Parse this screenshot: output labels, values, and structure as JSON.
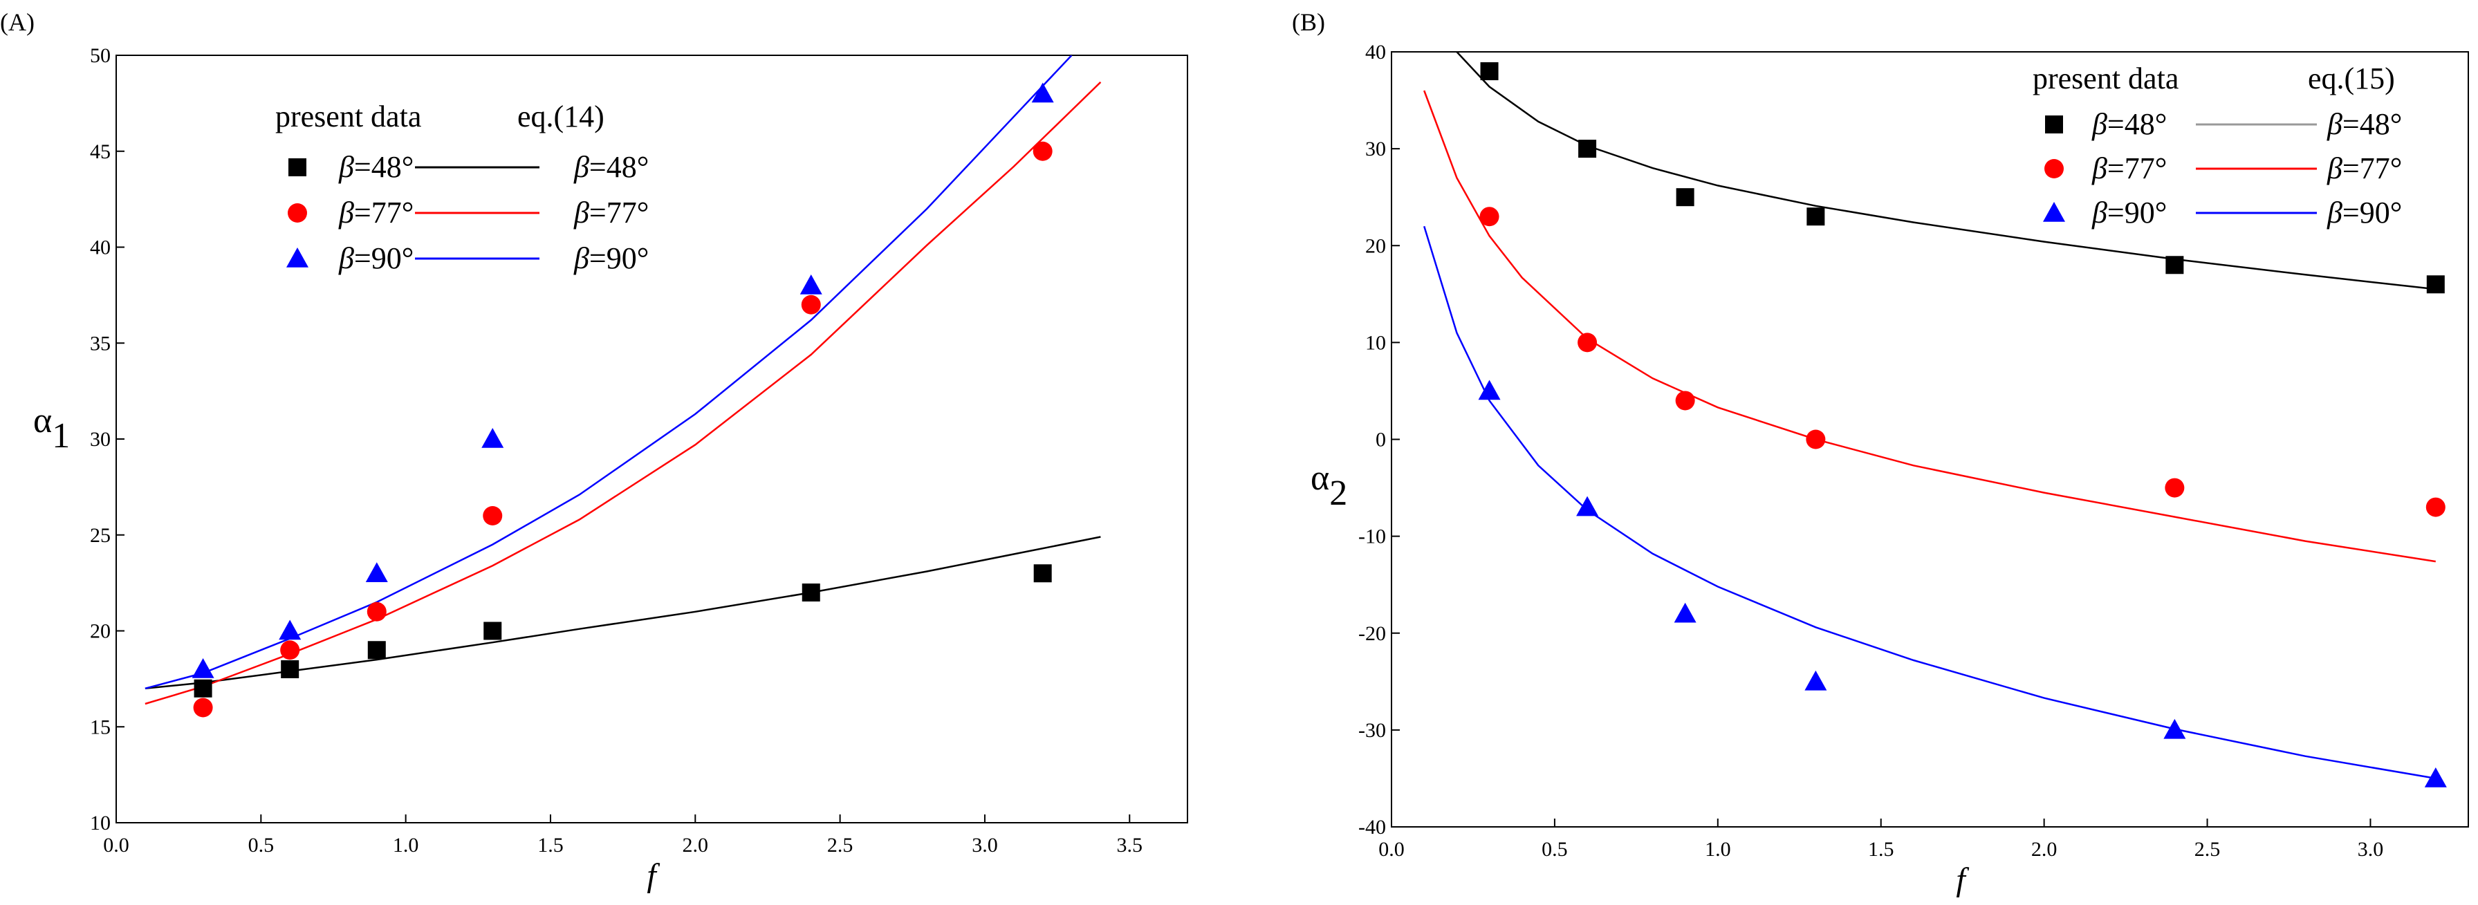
{
  "chart_data": [
    {
      "type": "scatter",
      "panel_label": "(A)",
      "title": "",
      "xlabel": "f",
      "ylabel_symbol": "α",
      "ylabel_sub": "1",
      "xlim": [
        0.0,
        3.7
      ],
      "ylim": [
        10,
        50
      ],
      "xticks": [
        "0.0",
        "0.5",
        "1.0",
        "1.5",
        "2.0",
        "2.5",
        "3.0",
        "3.5"
      ],
      "yticks": [
        "10",
        "15",
        "20",
        "25",
        "30",
        "35",
        "40",
        "45",
        "50"
      ],
      "legend": {
        "position": "top-left",
        "col1_title": "present data",
        "col2_title": "eq.(14)",
        "entries": [
          {
            "greek": "β",
            "text": "=48°"
          },
          {
            "greek": "β",
            "text": "=77°"
          },
          {
            "greek": "β",
            "text": "=90°"
          }
        ]
      },
      "series": [
        {
          "name": "β=48°",
          "color": "#000000",
          "marker": "square",
          "x": [
            0.3,
            0.6,
            0.9,
            1.3,
            2.4,
            3.2
          ],
          "y": [
            17,
            18,
            19,
            20,
            22,
            23
          ],
          "curve_x": [
            0.1,
            0.3,
            0.6,
            0.9,
            1.3,
            1.6,
            2.0,
            2.4,
            2.8,
            3.1,
            3.4
          ],
          "curve_y": [
            17.0,
            17.3,
            17.9,
            18.5,
            19.4,
            20.1,
            21.0,
            22.0,
            23.1,
            24.0,
            24.9
          ]
        },
        {
          "name": "β=77°",
          "color": "#ff0000",
          "marker": "circle",
          "x": [
            0.3,
            0.6,
            0.9,
            1.3,
            2.4,
            3.2
          ],
          "y": [
            16,
            19,
            21,
            26,
            37,
            45
          ],
          "curve_x": [
            0.1,
            0.3,
            0.6,
            0.9,
            1.3,
            1.6,
            2.0,
            2.4,
            2.8,
            3.1,
            3.4
          ],
          "curve_y": [
            16.2,
            17.1,
            18.8,
            20.6,
            23.4,
            25.8,
            29.7,
            34.4,
            40.1,
            44.2,
            48.6
          ]
        },
        {
          "name": "β=90°",
          "color": "#0000ff",
          "marker": "triangle",
          "x": [
            0.3,
            0.6,
            0.9,
            1.3,
            2.4,
            3.2
          ],
          "y": [
            18,
            20,
            23,
            30,
            38,
            48
          ],
          "curve_x": [
            0.1,
            0.3,
            0.6,
            0.9,
            1.3,
            1.6,
            2.0,
            2.4,
            2.8,
            3.1,
            3.3
          ],
          "curve_y": [
            17.0,
            17.8,
            19.6,
            21.5,
            24.5,
            27.1,
            31.3,
            36.2,
            42.0,
            46.8,
            50.0
          ]
        }
      ]
    },
    {
      "type": "scatter",
      "panel_label": "(B)",
      "title": "",
      "xlabel": "f",
      "ylabel_symbol": "α",
      "ylabel_sub": "2",
      "xlim": [
        0.0,
        3.3
      ],
      "ylim": [
        -40,
        40
      ],
      "xticks": [
        "0.0",
        "0.5",
        "1.0",
        "1.5",
        "2.0",
        "2.5",
        "3.0"
      ],
      "yticks": [
        "-40",
        "-30",
        "-20",
        "-10",
        "0",
        "10",
        "20",
        "30",
        "40"
      ],
      "legend": {
        "position": "top-right",
        "col1_title": "present data",
        "col2_title": "eq.(15)",
        "entries": [
          {
            "greek": "β",
            "text": "=48°"
          },
          {
            "greek": "β",
            "text": "=77°"
          },
          {
            "greek": "β",
            "text": "=90°"
          }
        ]
      },
      "series": [
        {
          "name": "β=48°",
          "color": "#000000",
          "legend_line_color": "#999999",
          "marker": "square",
          "x": [
            0.3,
            0.6,
            0.9,
            1.3,
            2.4,
            3.2
          ],
          "y": [
            38,
            30,
            25,
            23,
            18,
            16
          ],
          "curve_x": [
            0.2,
            0.3,
            0.45,
            0.6,
            0.8,
            1.0,
            1.3,
            1.6,
            2.0,
            2.4,
            2.8,
            3.2
          ],
          "curve_y": [
            40.0,
            36.4,
            32.8,
            30.3,
            28.0,
            26.2,
            24.1,
            22.4,
            20.4,
            18.6,
            17.0,
            15.5
          ]
        },
        {
          "name": "β=77°",
          "color": "#ff0000",
          "marker": "circle",
          "x": [
            0.3,
            0.6,
            0.9,
            1.3,
            2.4,
            3.2
          ],
          "y": [
            23,
            10,
            4,
            0,
            -5,
            -7
          ],
          "curve_x": [
            0.1,
            0.2,
            0.3,
            0.4,
            0.6,
            0.8,
            1.0,
            1.3,
            1.6,
            2.0,
            2.4,
            2.8,
            3.2
          ],
          "curve_y": [
            36.0,
            27.0,
            21.0,
            16.7,
            10.4,
            6.3,
            3.3,
            0.0,
            -2.7,
            -5.5,
            -8.0,
            -10.5,
            -12.6
          ]
        },
        {
          "name": "β=90°",
          "color": "#0000ff",
          "marker": "triangle",
          "x": [
            0.3,
            0.6,
            0.9,
            1.3,
            2.4,
            3.2
          ],
          "y": [
            5,
            -7,
            -18,
            -25,
            -30,
            -35
          ],
          "curve_x": [
            0.1,
            0.2,
            0.3,
            0.45,
            0.6,
            0.8,
            1.0,
            1.3,
            1.6,
            2.0,
            2.4,
            2.8,
            3.2
          ],
          "curve_y": [
            22.0,
            11.0,
            4.0,
            -2.7,
            -7.3,
            -11.8,
            -15.2,
            -19.4,
            -22.8,
            -26.7,
            -29.9,
            -32.7,
            -35.0
          ]
        }
      ]
    }
  ]
}
